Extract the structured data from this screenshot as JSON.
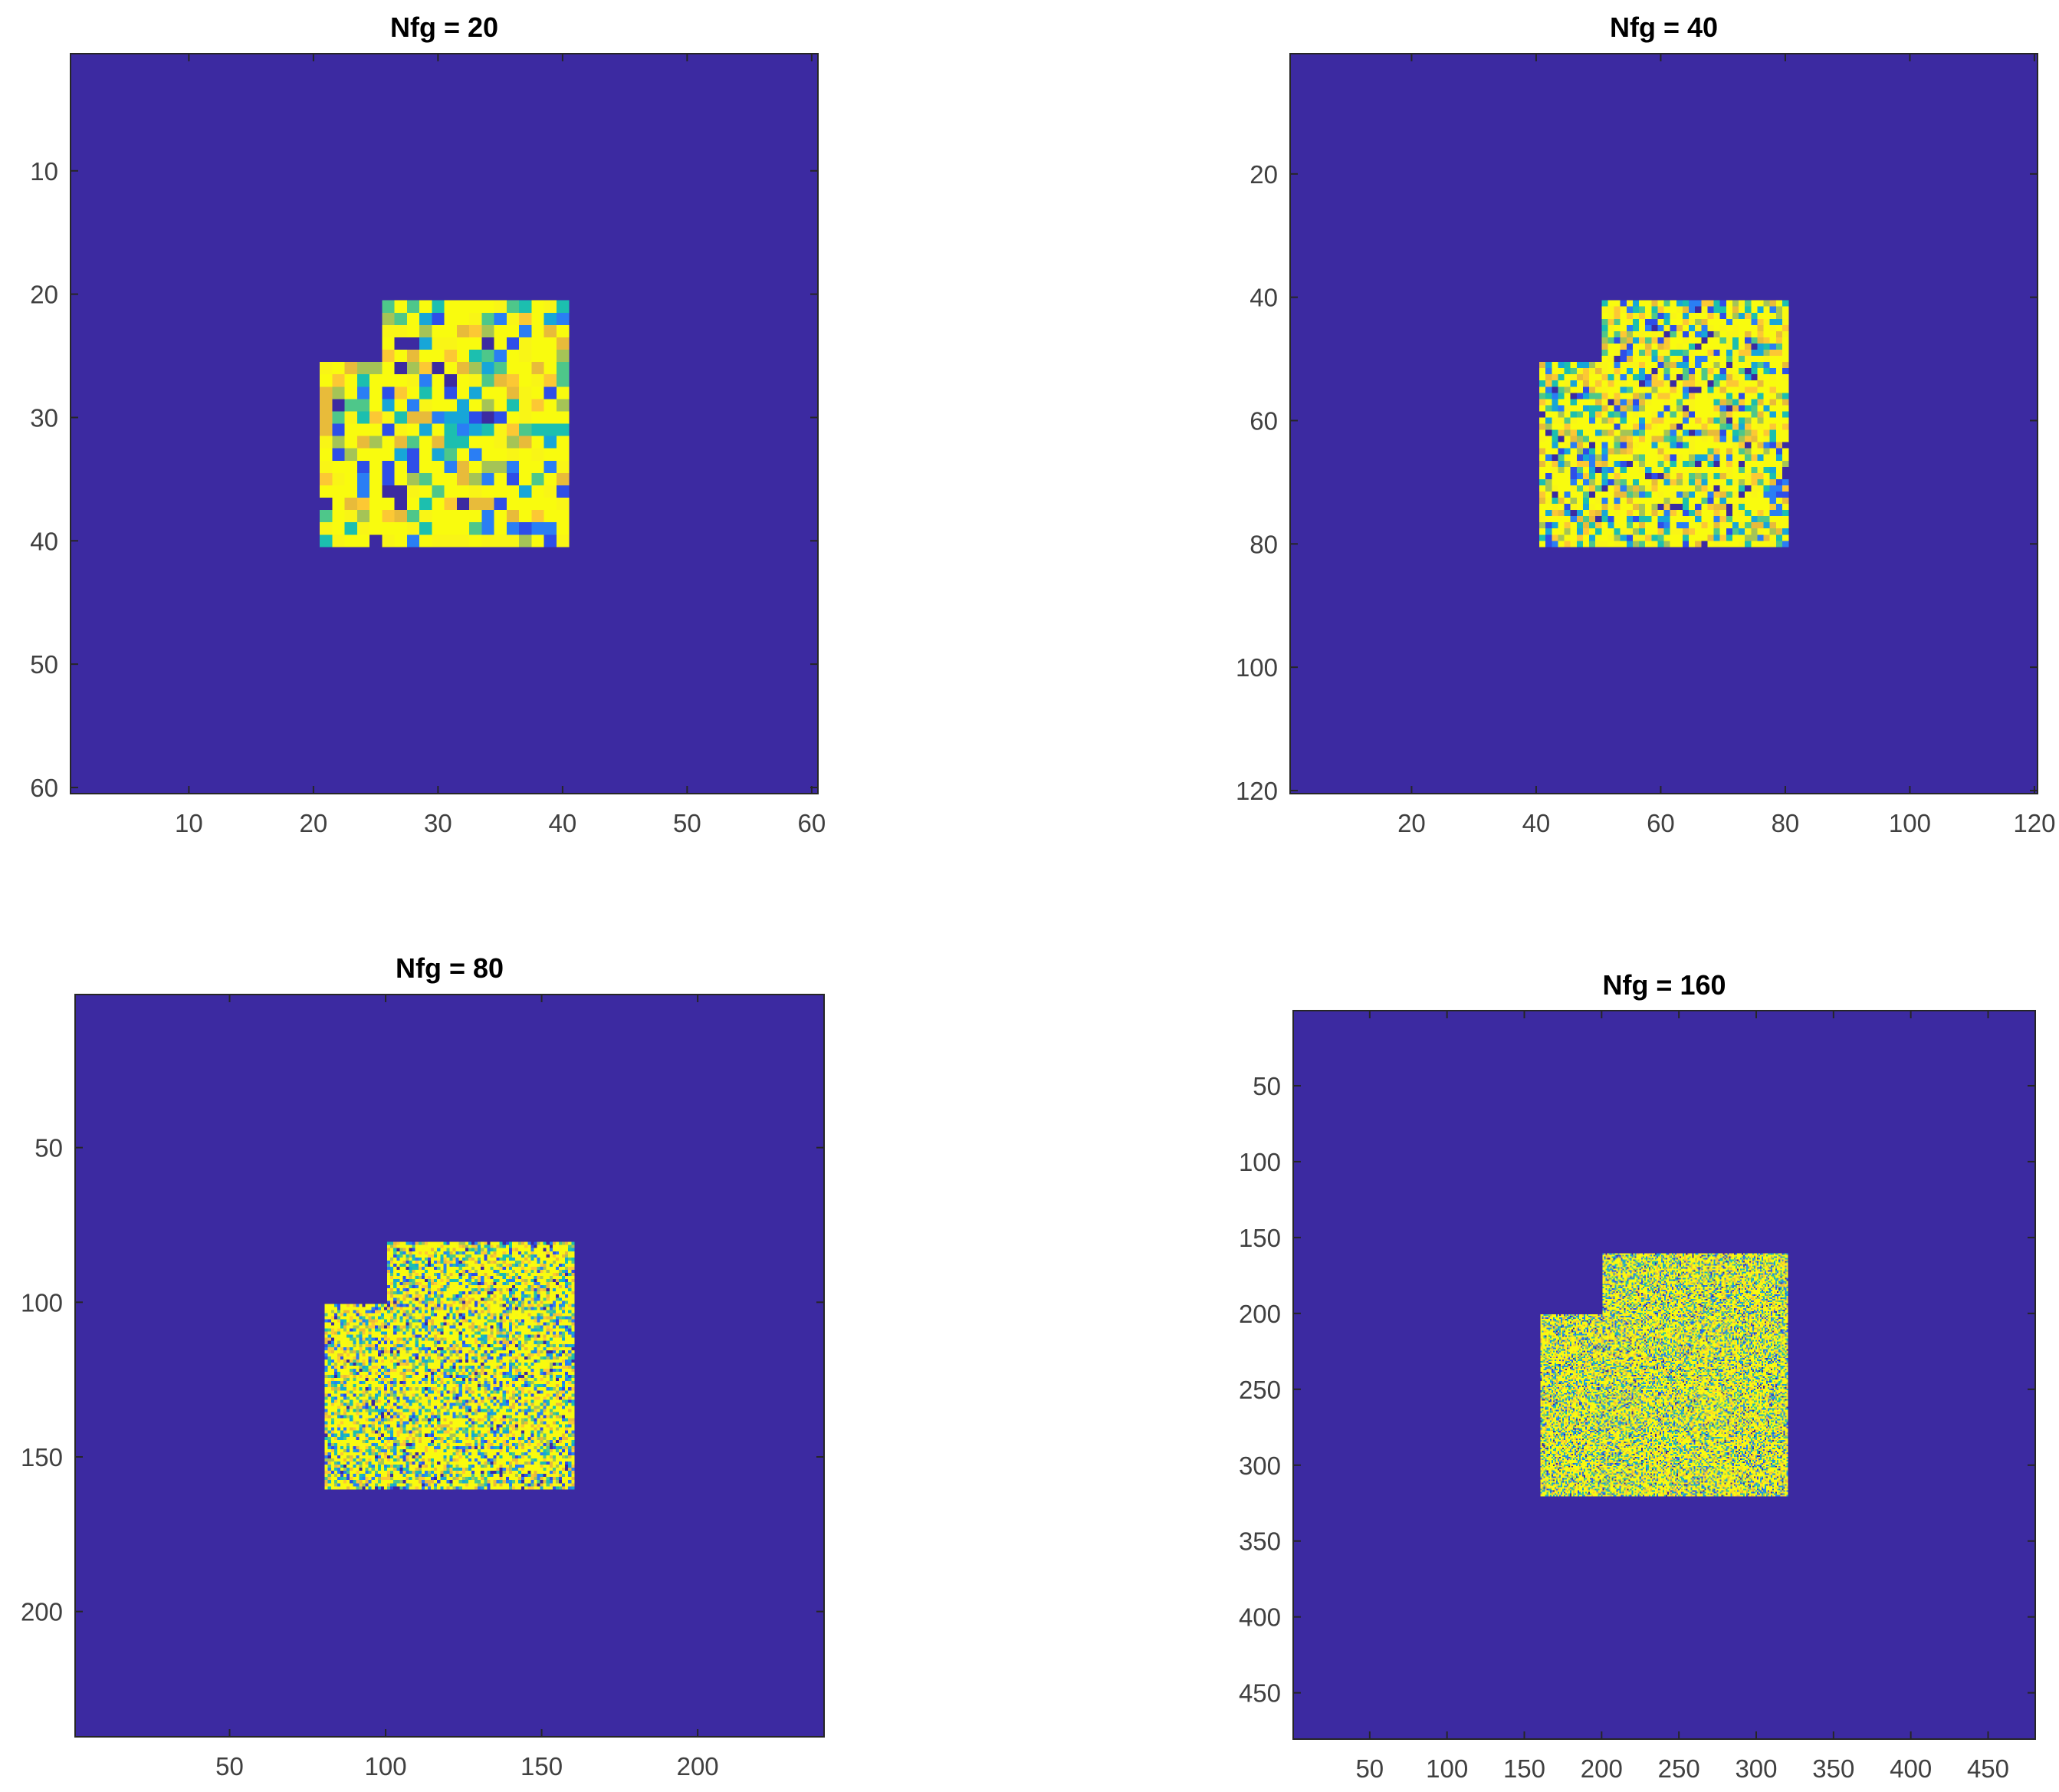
{
  "chart_data": [
    {
      "type": "heatmap",
      "title": "Nfg = 20",
      "grid_size": 60,
      "xlim": [
        0.5,
        60.5
      ],
      "ylim": [
        0.5,
        60.5
      ],
      "y_direction": "reversed",
      "xticks": [
        10,
        20,
        30,
        40,
        50,
        60
      ],
      "yticks": [
        10,
        20,
        30,
        40,
        50,
        60
      ],
      "foreground_region": {
        "lower_block": {
          "x": [
            21,
            40
          ],
          "y": [
            26,
            40
          ]
        },
        "upper_block": {
          "x": [
            26,
            40
          ],
          "y": [
            21,
            25
          ]
        }
      },
      "background_value": 0,
      "foreground_values": "random noise"
    },
    {
      "type": "heatmap",
      "title": "Nfg = 40",
      "grid_size": 120,
      "xlim": [
        0.5,
        120.5
      ],
      "ylim": [
        0.5,
        120.5
      ],
      "y_direction": "reversed",
      "xticks": [
        20,
        40,
        60,
        80,
        100,
        120
      ],
      "yticks": [
        20,
        40,
        60,
        80,
        100,
        120
      ],
      "foreground_region": {
        "lower_block": {
          "x": [
            41,
            80
          ],
          "y": [
            51,
            80
          ]
        },
        "upper_block": {
          "x": [
            51,
            80
          ],
          "y": [
            41,
            50
          ]
        }
      },
      "background_value": 0,
      "foreground_values": "random noise"
    },
    {
      "type": "heatmap",
      "title": "Nfg = 80",
      "grid_size": 240,
      "xlim": [
        0.5,
        240.5
      ],
      "ylim": [
        0.5,
        240.5
      ],
      "y_direction": "reversed",
      "xticks": [
        50,
        100,
        150,
        200
      ],
      "yticks": [
        50,
        100,
        150,
        200
      ],
      "foreground_region": {
        "lower_block": {
          "x": [
            81,
            160
          ],
          "y": [
            101,
            160
          ]
        },
        "upper_block": {
          "x": [
            101,
            160
          ],
          "y": [
            81,
            100
          ]
        }
      },
      "background_value": 0,
      "foreground_values": "random noise"
    },
    {
      "type": "heatmap",
      "title": "Nfg = 160",
      "grid_size": 480,
      "xlim": [
        0.5,
        480.5
      ],
      "ylim": [
        0.5,
        480.5
      ],
      "y_direction": "reversed",
      "xticks": [
        50,
        100,
        150,
        200,
        250,
        300,
        350,
        400,
        450
      ],
      "yticks": [
        50,
        100,
        150,
        200,
        250,
        300,
        350,
        400,
        450
      ],
      "foreground_region": {
        "lower_block": {
          "x": [
            161,
            320
          ],
          "y": [
            201,
            320
          ]
        },
        "upper_block": {
          "x": [
            201,
            320
          ],
          "y": [
            161,
            200
          ]
        }
      },
      "background_value": 0,
      "foreground_values": "random noise"
    }
  ],
  "colors": {
    "background": "#3c2aa1",
    "parula": [
      "#3c2aa1",
      "#2e4ee8",
      "#2a7ef4",
      "#17a6d8",
      "#1cbfaf",
      "#4ec78a",
      "#a5c456",
      "#e8bb3a",
      "#fcc834",
      "#f9f516",
      "#f9fb0e"
    ]
  }
}
